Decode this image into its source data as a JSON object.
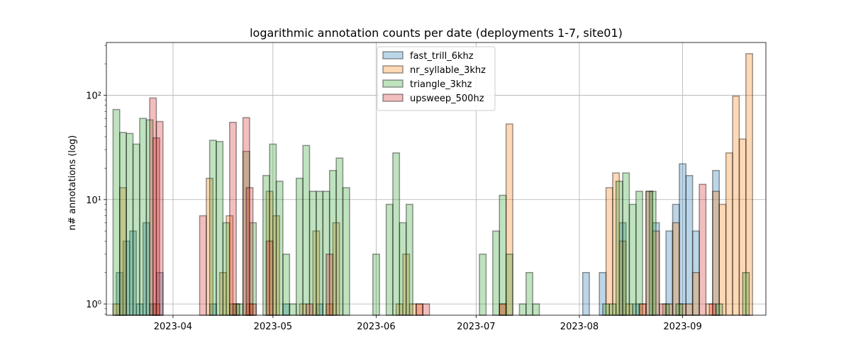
{
  "chart_data": {
    "type": "bar",
    "title": "logarithmic annotation counts per date (deployments 1-7, site01)",
    "xlabel": "",
    "ylabel": "n# annotations (log)",
    "yscale": "log",
    "ylim": [
      0.78,
      320
    ],
    "xlim": [
      "2023-03-12",
      "2023-09-26"
    ],
    "x_ticks": [
      "2023-04",
      "2023-05",
      "2023-06",
      "2023-07",
      "2023-08",
      "2023-09"
    ],
    "y_ticks": [
      {
        "value": 1,
        "label": "10⁰"
      },
      {
        "value": 10,
        "label": "10¹"
      },
      {
        "value": 100,
        "label": "10²"
      }
    ],
    "grid": true,
    "legend_position": "upper center",
    "bar_width_days": 2,
    "series": [
      {
        "name": "fast_trill_6khz",
        "color": "#1f77b4",
        "points": [
          [
            "2023-03-16",
            2
          ],
          [
            "2023-03-18",
            4
          ],
          [
            "2023-03-20",
            5
          ],
          [
            "2023-03-22",
            1
          ],
          [
            "2023-03-24",
            6
          ],
          [
            "2023-03-26",
            1
          ],
          [
            "2023-03-28",
            2
          ],
          [
            "2023-04-13",
            1
          ],
          [
            "2023-04-20",
            1
          ],
          [
            "2023-05-05",
            1
          ],
          [
            "2023-05-15",
            1
          ],
          [
            "2023-08-03",
            2
          ],
          [
            "2023-08-08",
            2
          ],
          [
            "2023-08-14",
            6
          ],
          [
            "2023-08-18",
            1
          ],
          [
            "2023-08-22",
            12
          ],
          [
            "2023-08-24",
            6
          ],
          [
            "2023-08-28",
            5
          ],
          [
            "2023-08-30",
            9
          ],
          [
            "2023-09-01",
            22
          ],
          [
            "2023-09-03",
            17
          ],
          [
            "2023-09-05",
            5
          ],
          [
            "2023-09-11",
            19
          ]
        ]
      },
      {
        "name": "nr_syllable_3khz",
        "color": "#ff7f0e",
        "points": [
          [
            "2023-03-15",
            1
          ],
          [
            "2023-03-17",
            13
          ],
          [
            "2023-03-27",
            1
          ],
          [
            "2023-04-12",
            16
          ],
          [
            "2023-04-16",
            2
          ],
          [
            "2023-04-18",
            7
          ],
          [
            "2023-04-20",
            1
          ],
          [
            "2023-04-24",
            1
          ],
          [
            "2023-04-30",
            12
          ],
          [
            "2023-05-02",
            7
          ],
          [
            "2023-05-10",
            1
          ],
          [
            "2023-05-14",
            5
          ],
          [
            "2023-05-18",
            1
          ],
          [
            "2023-05-20",
            6
          ],
          [
            "2023-06-08",
            1
          ],
          [
            "2023-06-10",
            3
          ],
          [
            "2023-06-12",
            1
          ],
          [
            "2023-06-14",
            1
          ],
          [
            "2023-07-09",
            1
          ],
          [
            "2023-07-11",
            53
          ],
          [
            "2023-08-10",
            13
          ],
          [
            "2023-08-12",
            18
          ],
          [
            "2023-08-14",
            4
          ],
          [
            "2023-08-16",
            1
          ],
          [
            "2023-08-20",
            1
          ],
          [
            "2023-08-22",
            12
          ],
          [
            "2023-08-24",
            5
          ],
          [
            "2023-08-28",
            1
          ],
          [
            "2023-08-30",
            6
          ],
          [
            "2023-09-01",
            1
          ],
          [
            "2023-09-03",
            1
          ],
          [
            "2023-09-05",
            2
          ],
          [
            "2023-09-09",
            1
          ],
          [
            "2023-09-11",
            12
          ],
          [
            "2023-09-13",
            9
          ],
          [
            "2023-09-15",
            28
          ],
          [
            "2023-09-17",
            98
          ],
          [
            "2023-09-19",
            38
          ],
          [
            "2023-09-21",
            250
          ]
        ]
      },
      {
        "name": "triangle_3khz",
        "color": "#2ca02c",
        "points": [
          [
            "2023-03-15",
            73
          ],
          [
            "2023-03-17",
            44
          ],
          [
            "2023-03-19",
            43
          ],
          [
            "2023-03-21",
            34
          ],
          [
            "2023-03-23",
            60
          ],
          [
            "2023-03-25",
            58
          ],
          [
            "2023-04-13",
            37
          ],
          [
            "2023-04-15",
            36
          ],
          [
            "2023-04-17",
            6
          ],
          [
            "2023-04-19",
            1
          ],
          [
            "2023-04-21",
            1
          ],
          [
            "2023-04-23",
            29
          ],
          [
            "2023-04-25",
            6
          ],
          [
            "2023-04-29",
            17
          ],
          [
            "2023-05-01",
            34
          ],
          [
            "2023-05-03",
            15
          ],
          [
            "2023-05-05",
            3
          ],
          [
            "2023-05-07",
            1
          ],
          [
            "2023-05-09",
            16
          ],
          [
            "2023-05-11",
            33
          ],
          [
            "2023-05-13",
            12
          ],
          [
            "2023-05-15",
            12
          ],
          [
            "2023-05-17",
            12
          ],
          [
            "2023-05-19",
            19
          ],
          [
            "2023-05-21",
            25
          ],
          [
            "2023-05-23",
            13
          ],
          [
            "2023-06-01",
            3
          ],
          [
            "2023-06-05",
            9
          ],
          [
            "2023-06-07",
            28
          ],
          [
            "2023-06-09",
            6
          ],
          [
            "2023-06-11",
            9
          ],
          [
            "2023-07-03",
            3
          ],
          [
            "2023-07-07",
            5
          ],
          [
            "2023-07-09",
            11
          ],
          [
            "2023-07-11",
            3
          ],
          [
            "2023-07-15",
            1
          ],
          [
            "2023-07-17",
            2
          ],
          [
            "2023-07-19",
            1
          ],
          [
            "2023-08-09",
            1
          ],
          [
            "2023-08-11",
            1
          ],
          [
            "2023-08-13",
            15
          ],
          [
            "2023-08-15",
            18
          ],
          [
            "2023-08-17",
            9
          ],
          [
            "2023-08-19",
            12
          ],
          [
            "2023-08-23",
            12
          ],
          [
            "2023-08-27",
            1
          ],
          [
            "2023-08-31",
            1
          ],
          [
            "2023-09-12",
            1
          ],
          [
            "2023-09-20",
            2
          ]
        ]
      },
      {
        "name": "upsweep_500hz",
        "color": "#d62728",
        "points": [
          [
            "2023-03-26",
            94
          ],
          [
            "2023-03-27",
            39
          ],
          [
            "2023-03-28",
            56
          ],
          [
            "2023-04-10",
            7
          ],
          [
            "2023-04-19",
            55
          ],
          [
            "2023-04-23",
            61
          ],
          [
            "2023-04-24",
            13
          ],
          [
            "2023-04-25",
            1
          ],
          [
            "2023-04-30",
            4
          ],
          [
            "2023-05-12",
            1
          ],
          [
            "2023-05-18",
            3
          ],
          [
            "2023-06-14",
            1
          ],
          [
            "2023-06-16",
            1
          ],
          [
            "2023-07-09",
            1
          ],
          [
            "2023-08-20",
            1
          ],
          [
            "2023-08-26",
            1
          ],
          [
            "2023-09-07",
            14
          ],
          [
            "2023-09-10",
            1
          ]
        ]
      }
    ]
  }
}
